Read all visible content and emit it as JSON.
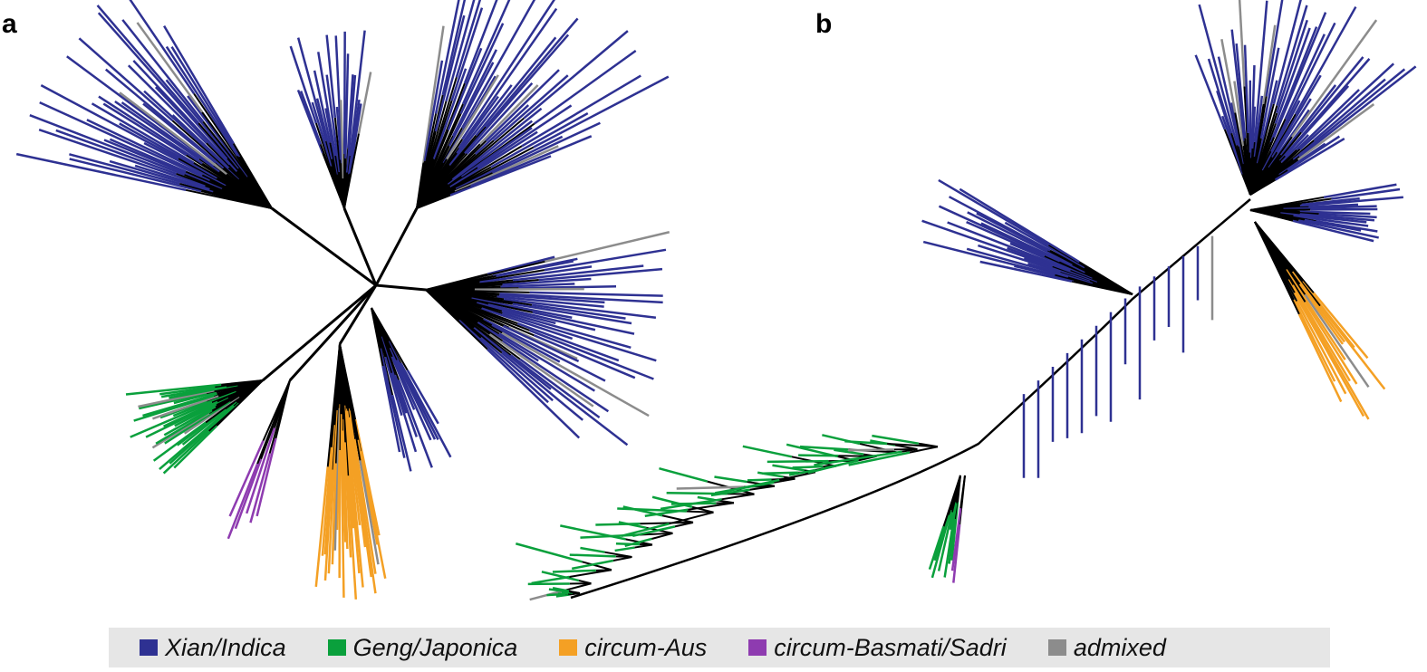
{
  "panels": [
    {
      "label": "a"
    },
    {
      "label": "b"
    }
  ],
  "legend": [
    {
      "label": "Xian/Indica",
      "color": "#2e3192"
    },
    {
      "label": "Geng/Japonica",
      "color": "#0aa03c"
    },
    {
      "label": "circum-Aus",
      "color": "#f4a024"
    },
    {
      "label": "circum-Basmati/Sadri",
      "color": "#8e3bb0"
    },
    {
      "label": "admixed",
      "color": "#8c8c8c"
    }
  ]
}
